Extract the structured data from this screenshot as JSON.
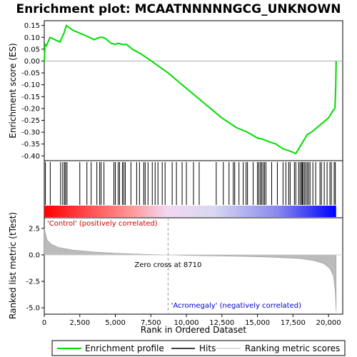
{
  "chart_data": {
    "type": "line",
    "title": "Enrichment plot: MCAATNNNNNGCG_UNKNOWN",
    "xlabel": "Rank in Ordered Dataset",
    "ylabel_top": "Enrichment score (ES)",
    "ylabel_bottom": "Ranked list metric (tTest)",
    "xlim": [
      0,
      21000
    ],
    "ylim_top": [
      -0.42,
      0.17
    ],
    "ylim_bottom": [
      -5.6,
      3.5
    ],
    "x_ticks": [
      0,
      2500,
      5000,
      7500,
      10000,
      12500,
      15000,
      17500,
      20000
    ],
    "x_tick_labels": [
      "0",
      "2,500",
      "5,000",
      "7,500",
      "10,000",
      "12,500",
      "15,000",
      "17,500",
      "20,000"
    ],
    "y_ticks_top": [
      0.15,
      0.1,
      0.05,
      0.0,
      -0.05,
      -0.1,
      -0.15,
      -0.2,
      -0.25,
      -0.3,
      -0.35,
      -0.4
    ],
    "y_tick_labels_top": [
      "0.15",
      "0.10",
      "0.05",
      "0.00",
      "-0.05",
      "-0.10",
      "-0.15",
      "-0.20",
      "-0.25",
      "-0.30",
      "-0.35",
      "-0.40"
    ],
    "y_ticks_bottom": [
      2.5,
      0.0,
      -2.5,
      -5.0
    ],
    "y_tick_labels_bottom": [
      "2.5",
      "0.0",
      "-2.5",
      "-5.0"
    ],
    "series": [
      {
        "name": "Enrichment profile",
        "color": "#00dd00",
        "x": [
          0,
          60,
          150,
          400,
          750,
          1100,
          1250,
          1400,
          1550,
          2000,
          2600,
          3000,
          3500,
          3900,
          4100,
          4300,
          4700,
          5000,
          5200,
          5500,
          5800,
          6200,
          6800,
          7300,
          8000,
          8710,
          9500,
          10500,
          11500,
          12500,
          13500,
          14300,
          15000,
          15400,
          15800,
          16300,
          16800,
          17300,
          17700,
          17900,
          18100,
          18300,
          18500,
          18800,
          19200,
          19600,
          20000,
          20300,
          20450,
          20510,
          20540
        ],
        "y": [
          0.0,
          0.07,
          0.065,
          0.1,
          0.09,
          0.08,
          0.1,
          0.12,
          0.15,
          0.13,
          0.115,
          0.105,
          0.09,
          0.1,
          0.1,
          0.095,
          0.075,
          0.07,
          0.075,
          0.07,
          0.07,
          0.05,
          0.03,
          0.01,
          -0.02,
          -0.05,
          -0.09,
          -0.14,
          -0.19,
          -0.24,
          -0.28,
          -0.3,
          -0.325,
          -0.33,
          -0.34,
          -0.35,
          -0.37,
          -0.38,
          -0.39,
          -0.37,
          -0.35,
          -0.33,
          -0.31,
          -0.3,
          -0.28,
          -0.26,
          -0.24,
          -0.21,
          -0.2,
          -0.11,
          0.0
        ]
      }
    ],
    "hits_x": [
      80,
      420,
      1150,
      1300,
      1420,
      1500,
      1600,
      2500,
      3000,
      3300,
      3700,
      3900,
      4000,
      4200,
      4900,
      5000,
      5200,
      5300,
      5500,
      5600,
      5700,
      6100,
      6500,
      6700,
      7000,
      7100,
      7300,
      7600,
      7800,
      8000,
      8300,
      8500,
      9000,
      9300,
      9700,
      10000,
      10500,
      10900,
      12100,
      12600,
      13000,
      13300,
      13400,
      13700,
      14000,
      14200,
      14300,
      14700,
      15000,
      15100,
      15200,
      15300,
      15400,
      15500,
      15600,
      16000,
      16400,
      16800,
      17000,
      17200,
      17300,
      17600,
      17700,
      17900,
      18000,
      18100,
      18150,
      18200,
      18300,
      18400,
      18500,
      18600,
      18700,
      18900,
      19100,
      19400,
      19500,
      19700,
      19900,
      20100,
      20200,
      20400,
      20480
    ],
    "metric_points": {
      "rank": [
        0,
        200,
        500,
        1000,
        2000,
        3500,
        5000,
        7000,
        8710,
        10000,
        12000,
        14000,
        16000,
        18000,
        19000,
        19700,
        20100,
        20350,
        20480,
        20540
      ],
      "value": [
        2.5,
        1.4,
        1.0,
        0.7,
        0.45,
        0.27,
        0.15,
        0.05,
        0.0,
        -0.05,
        -0.1,
        -0.15,
        -0.22,
        -0.35,
        -0.55,
        -0.85,
        -1.3,
        -2.0,
        -3.5,
        -5.3
      ]
    },
    "zero_cross_label": "Zero cross at 8710",
    "zero_cross_rank": 8710,
    "pos_label": "'Control' (positively correlated)",
    "neg_label": "'Acromegaly' (negatively correlated)",
    "legend": [
      "Enrichment profile",
      "Hits",
      "Ranking metric scores"
    ],
    "legend_position": "bottom",
    "colors": {
      "profile": "#00dd00",
      "pos_text": "#cc0000",
      "neg_text": "#0000cc",
      "metric_fill": "#bbbbbb"
    }
  }
}
